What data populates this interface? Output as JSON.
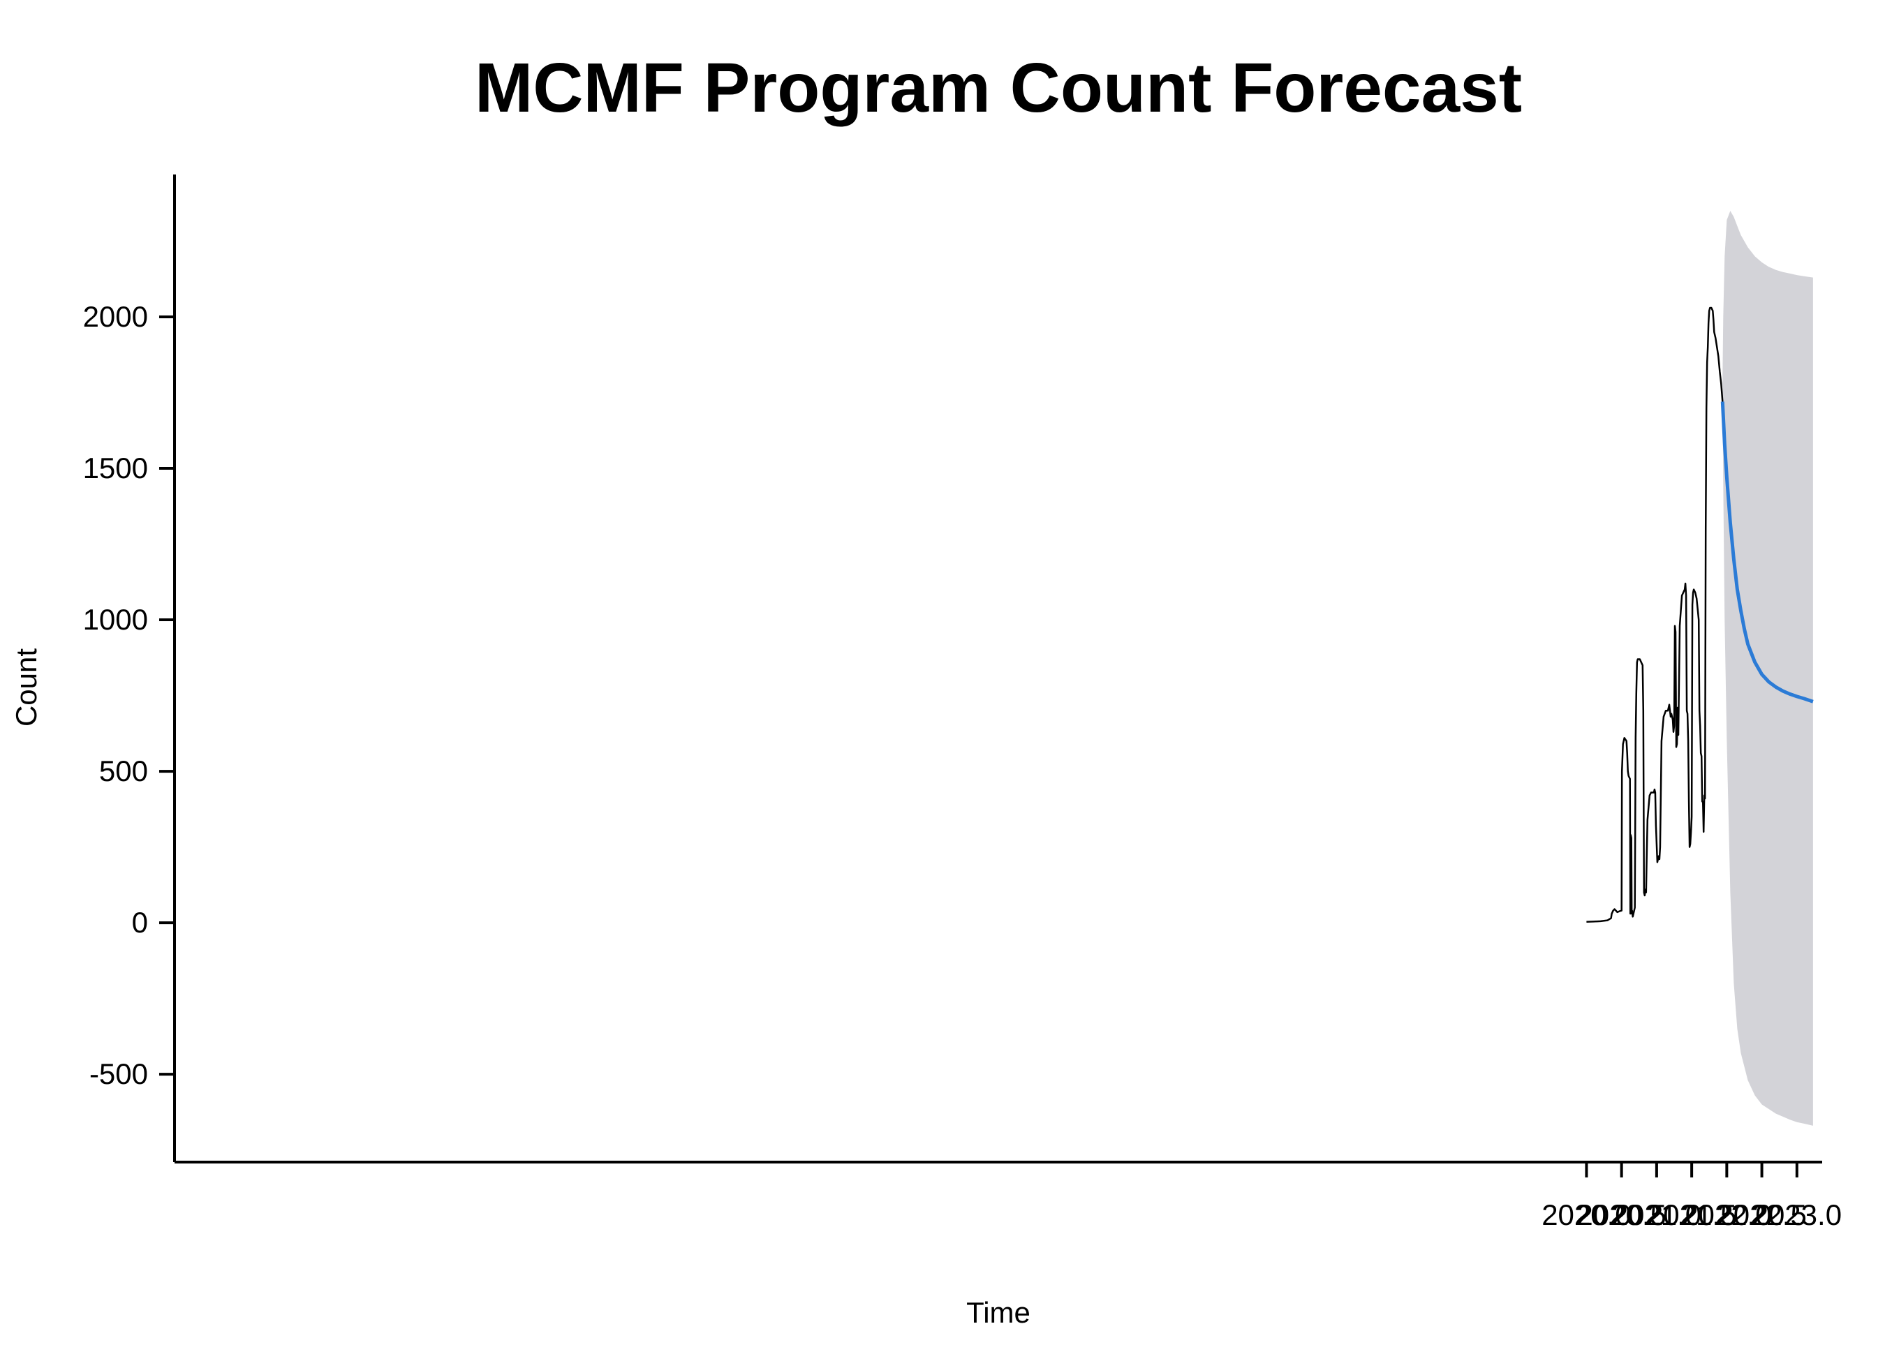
{
  "chart_data": {
    "type": "line",
    "title": "MCMF Program Count Forecast",
    "xlabel": "Time",
    "ylabel": "Count",
    "xlim": [
      1999.87,
      2023.36
    ],
    "ylim": [
      -790,
      2470
    ],
    "x_ticks": [
      2020.0,
      2020.5,
      2021.0,
      2021.5,
      2022.0,
      2022.5,
      2023.0
    ],
    "x_tick_labels": [
      "2020.0",
      "2020.5",
      "2021.0",
      "2021.5",
      "2022.0",
      "2022.5",
      "2023.0"
    ],
    "y_ticks": [
      -500,
      0,
      500,
      1000,
      1500,
      2000
    ],
    "y_tick_labels": [
      "-500",
      "0",
      "500",
      "1000",
      "1500",
      "2000"
    ],
    "grid": false,
    "colors": {
      "history": "#000000",
      "forecast": "#2b7bd6",
      "interval": "#d3d3d8"
    },
    "series": [
      {
        "role": "history",
        "x": [
          2020.0,
          2020.1,
          2020.2,
          2020.3,
          2020.35,
          2020.36,
          2020.38,
          2020.4,
          2020.44,
          2020.47,
          2020.5,
          2020.505,
          2020.52,
          2020.54,
          2020.57,
          2020.58,
          2020.59,
          2020.6,
          2020.62,
          2020.625,
          2020.63,
          2020.64,
          2020.645,
          2020.65,
          2020.66,
          2020.67,
          2020.68,
          2020.69,
          2020.7,
          2020.71,
          2020.72,
          2020.73,
          2020.76,
          2020.78,
          2020.8,
          2020.81,
          2020.82,
          2020.83,
          2020.84,
          2020.85,
          2020.86,
          2020.87,
          2020.9,
          2020.92,
          2020.96,
          2020.97,
          2020.98,
          2020.99,
          2021.01,
          2021.02,
          2021.03,
          2021.04,
          2021.05,
          2021.07,
          2021.1,
          2021.13,
          2021.16,
          2021.18,
          2021.19,
          2021.2,
          2021.21,
          2021.22,
          2021.23,
          2021.24,
          2021.25,
          2021.26,
          2021.27,
          2021.28,
          2021.29,
          2021.3,
          2021.31,
          2021.33,
          2021.36,
          2021.38,
          2021.39,
          2021.4,
          2021.41,
          2021.42,
          2021.43,
          2021.44,
          2021.45,
          2021.46,
          2021.47,
          2021.48,
          2021.49,
          2021.5,
          2021.51,
          2021.52,
          2021.53,
          2021.55,
          2021.57,
          2021.6,
          2021.61,
          2021.62,
          2021.63,
          2021.64,
          2021.65,
          2021.66,
          2021.67,
          2021.68,
          2021.69,
          2021.7,
          2021.71,
          2021.72,
          2021.73,
          2021.74,
          2021.75,
          2021.76,
          2021.78,
          2021.8,
          2021.81,
          2021.82,
          2021.84,
          2021.86,
          2021.88,
          2021.9,
          2021.92,
          2021.94
        ],
        "y": [
          3,
          4,
          5,
          8,
          15,
          30,
          40,
          45,
          35,
          38,
          40,
          500,
          590,
          610,
          600,
          560,
          500,
          485,
          475,
          30,
          290,
          280,
          30,
          40,
          20,
          30,
          40,
          50,
          610,
          760,
          860,
          870,
          870,
          860,
          850,
          700,
          100,
          90,
          110,
          100,
          230,
          340,
          420,
          430,
          430,
          440,
          430,
          320,
          200,
          210,
          220,
          210,
          250,
          600,
          680,
          700,
          700,
          720,
          700,
          680,
          690,
          680,
          670,
          630,
          650,
          980,
          960,
          580,
          590,
          710,
          620,
          980,
          1080,
          1090,
          1095,
          1100,
          1120,
          1080,
          700,
          690,
          600,
          400,
          250,
          260,
          300,
          350,
          1050,
          1090,
          1100,
          1090,
          1070,
          1000,
          700,
          650,
          560,
          550,
          400,
          400,
          300,
          420,
          410,
          1300,
          1700,
          1850,
          1900,
          1980,
          2020,
          2030,
          2030,
          2020,
          1990,
          1950,
          1930,
          1900,
          1870,
          1820,
          1780,
          1720
        ]
      },
      {
        "role": "forecast",
        "x": [
          2021.94,
          2021.97,
          2022.0,
          2022.05,
          2022.1,
          2022.15,
          2022.2,
          2022.25,
          2022.3,
          2022.4,
          2022.5,
          2022.6,
          2022.7,
          2022.8,
          2022.9,
          2023.0,
          2023.1,
          2023.23
        ],
        "y": [
          1720,
          1580,
          1470,
          1320,
          1200,
          1100,
          1030,
          970,
          920,
          860,
          820,
          795,
          778,
          765,
          755,
          747,
          740,
          730
        ]
      },
      {
        "role": "interval",
        "x": [
          2021.94,
          2021.95,
          2021.97,
          2022.0,
          2022.05,
          2022.1,
          2022.15,
          2022.2,
          2022.3,
          2022.4,
          2022.5,
          2022.6,
          2022.7,
          2022.8,
          2022.9,
          2023.0,
          2023.1,
          2023.23
        ],
        "upper": [
          1800,
          2000,
          2200,
          2320,
          2350,
          2330,
          2300,
          2270,
          2230,
          2200,
          2180,
          2165,
          2155,
          2148,
          2143,
          2138,
          2134,
          2130
        ],
        "lower": [
          1720,
          1450,
          1000,
          600,
          100,
          -200,
          -350,
          -430,
          -520,
          -570,
          -600,
          -615,
          -630,
          -640,
          -650,
          -658,
          -663,
          -670
        ]
      }
    ]
  }
}
